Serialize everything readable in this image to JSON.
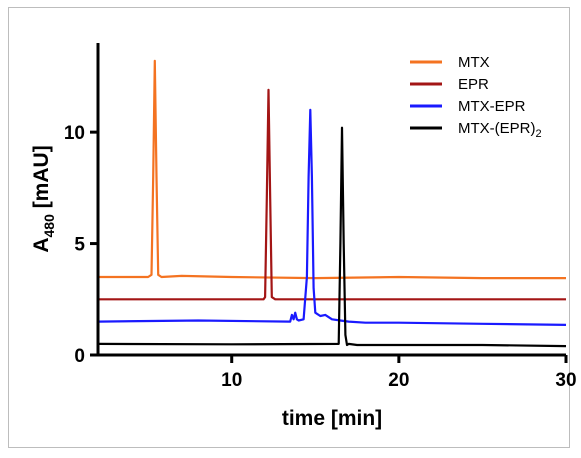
{
  "chart_data": {
    "type": "line",
    "xlabel": "time [min]",
    "ylabel": {
      "main": "A",
      "sub": "480",
      "unit": " [mAU]"
    },
    "xlim": [
      2,
      30
    ],
    "ylim": [
      0,
      14
    ],
    "xticks": [
      10,
      20,
      30
    ],
    "yticks": [
      0,
      5,
      10
    ],
    "grid": false,
    "legend_position": "top-right",
    "series": [
      {
        "name": "MTX",
        "color": "#f47321",
        "baseline": 3.5,
        "x": [
          2,
          5.0,
          5.2,
          5.3,
          5.4,
          5.5,
          5.6,
          5.8,
          7,
          10,
          15,
          20,
          25,
          30
        ],
        "y": [
          3.5,
          3.5,
          3.6,
          8.0,
          13.2,
          8.0,
          3.6,
          3.5,
          3.55,
          3.5,
          3.45,
          3.5,
          3.45,
          3.45
        ]
      },
      {
        "name": "EPR",
        "color": "#a31515",
        "baseline": 2.5,
        "x": [
          2,
          11.9,
          12.0,
          12.1,
          12.2,
          12.3,
          12.4,
          12.6,
          15,
          20,
          25,
          30
        ],
        "y": [
          2.5,
          2.5,
          2.6,
          7.0,
          11.9,
          7.0,
          2.6,
          2.5,
          2.5,
          2.5,
          2.5,
          2.5
        ]
      },
      {
        "name": "MTX-EPR",
        "color": "#1a1aff",
        "baseline": 1.5,
        "x": [
          2,
          8,
          13.5,
          13.6,
          13.7,
          13.8,
          13.9,
          14.0,
          14.3,
          14.5,
          14.6,
          14.7,
          14.8,
          14.9,
          15.0,
          15.3,
          15.6,
          16.0,
          16.5,
          17.0,
          18,
          20,
          25,
          30
        ],
        "y": [
          1.5,
          1.55,
          1.5,
          1.8,
          1.6,
          1.9,
          1.6,
          1.55,
          1.6,
          3.5,
          8.0,
          11.0,
          8.0,
          3.0,
          1.9,
          1.75,
          1.8,
          1.6,
          1.55,
          1.5,
          1.45,
          1.45,
          1.4,
          1.35
        ]
      },
      {
        "name": "MTX-(EPR)",
        "name_sub": "2",
        "color": "#000000",
        "baseline": 0.5,
        "x": [
          2,
          10,
          16.4,
          16.5,
          16.6,
          16.7,
          16.8,
          16.9,
          17.0,
          17.5,
          20,
          25,
          30
        ],
        "y": [
          0.5,
          0.48,
          0.5,
          5.0,
          10.2,
          5.0,
          0.9,
          0.45,
          0.5,
          0.45,
          0.45,
          0.45,
          0.4
        ]
      }
    ]
  }
}
